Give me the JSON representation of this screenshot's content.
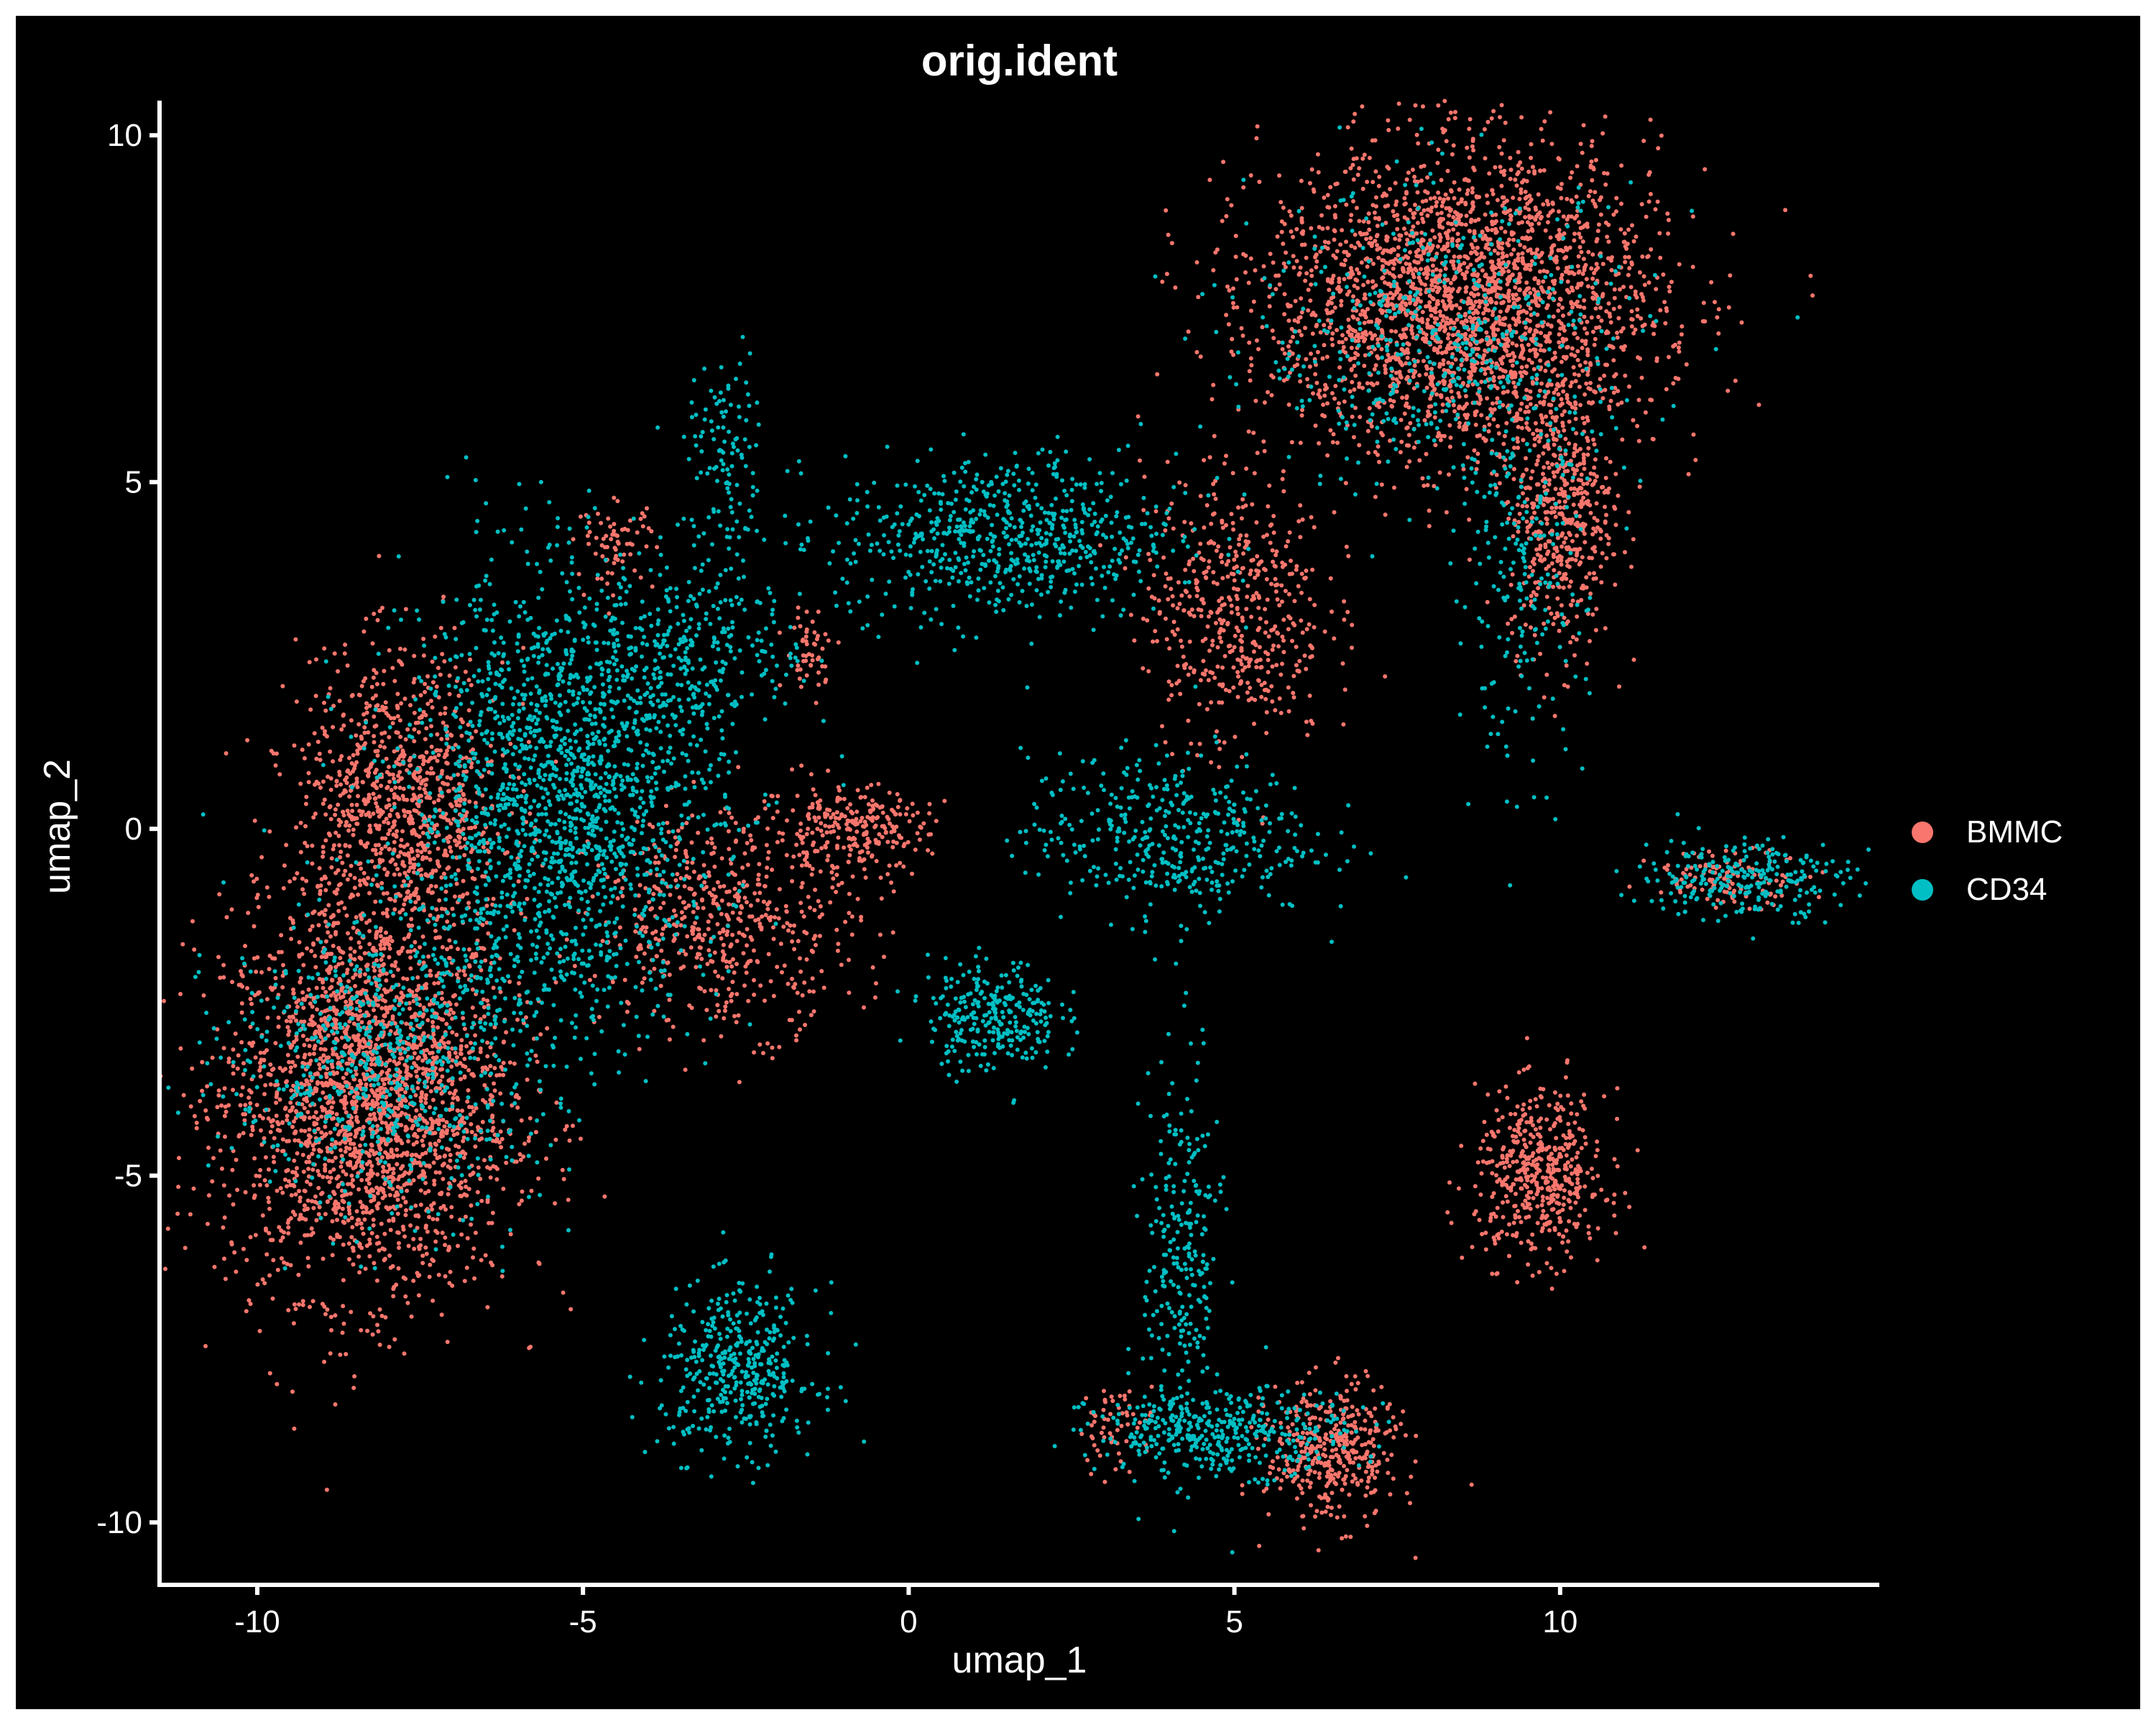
{
  "chart_data": {
    "type": "scatter",
    "title": "orig.ident",
    "xlabel": "umap_1",
    "ylabel": "umap_2",
    "xlim": [
      -11.5,
      14.9
    ],
    "ylim": [
      -10.9,
      10.5
    ],
    "xticks": [
      -10,
      -5,
      0,
      5,
      10
    ],
    "yticks": [
      -10,
      -5,
      0,
      5,
      10
    ],
    "grid": false,
    "legend_position": "right",
    "background": "#000000",
    "series": [
      {
        "name": "BMMC",
        "color": "#F8766D",
        "clusters": [
          {
            "x": -8.3,
            "y": -3.9,
            "sx": 1.1,
            "sy": 1.4,
            "n": 2400
          },
          {
            "x": -7.8,
            "y": 0.3,
            "sx": 0.8,
            "sy": 1.1,
            "n": 1000
          },
          {
            "x": -2.8,
            "y": -1.3,
            "sx": 1.0,
            "sy": 0.8,
            "n": 550
          },
          {
            "x": -0.9,
            "y": 0.0,
            "sx": 0.6,
            "sy": 0.3,
            "n": 250
          },
          {
            "x": -4.5,
            "y": 4.1,
            "sx": 0.3,
            "sy": 0.3,
            "n": 70
          },
          {
            "x": -1.5,
            "y": 2.6,
            "sx": 0.2,
            "sy": 0.3,
            "n": 50
          },
          {
            "x": 8.5,
            "y": 7.6,
            "sx": 1.5,
            "sy": 1.1,
            "n": 2600
          },
          {
            "x": 10.0,
            "y": 4.6,
            "sx": 0.4,
            "sy": 1.0,
            "n": 500
          },
          {
            "x": 5.0,
            "y": 3.2,
            "sx": 0.7,
            "sy": 1.0,
            "n": 500
          },
          {
            "x": 9.7,
            "y": -5.0,
            "sx": 0.5,
            "sy": 0.6,
            "n": 500
          },
          {
            "x": 6.5,
            "y": -9.0,
            "sx": 0.5,
            "sy": 0.5,
            "n": 400
          },
          {
            "x": 12.6,
            "y": -0.7,
            "sx": 0.6,
            "sy": 0.2,
            "n": 120
          },
          {
            "x": 3.2,
            "y": -8.6,
            "sx": 0.3,
            "sy": 0.3,
            "n": 60
          }
        ]
      },
      {
        "name": "CD34",
        "color": "#00BFC4",
        "clusters": [
          {
            "x": -5.3,
            "y": 0.5,
            "sx": 1.2,
            "sy": 1.6,
            "n": 1800
          },
          {
            "x": -8.0,
            "y": -3.3,
            "sx": 1.2,
            "sy": 1.1,
            "n": 700
          },
          {
            "x": -3.2,
            "y": 2.6,
            "sx": 0.8,
            "sy": 0.6,
            "n": 250
          },
          {
            "x": -2.8,
            "y": 5.2,
            "sx": 0.3,
            "sy": 0.8,
            "n": 120
          },
          {
            "x": 1.5,
            "y": 4.2,
            "sx": 1.3,
            "sy": 0.6,
            "n": 650
          },
          {
            "x": 4.0,
            "y": -0.1,
            "sx": 1.1,
            "sy": 0.6,
            "n": 420
          },
          {
            "x": 1.3,
            "y": -2.7,
            "sx": 0.5,
            "sy": 0.4,
            "n": 280
          },
          {
            "x": -2.6,
            "y": -7.8,
            "sx": 0.6,
            "sy": 0.6,
            "n": 420
          },
          {
            "x": 4.2,
            "y": -6.2,
            "sx": 0.3,
            "sy": 1.4,
            "n": 250
          },
          {
            "x": 4.8,
            "y": -8.7,
            "sx": 1.0,
            "sy": 0.3,
            "n": 400
          },
          {
            "x": 12.8,
            "y": -0.7,
            "sx": 0.8,
            "sy": 0.3,
            "n": 250
          },
          {
            "x": 9.4,
            "y": 3.5,
            "sx": 0.5,
            "sy": 1.3,
            "n": 200
          },
          {
            "x": 8.3,
            "y": 7.0,
            "sx": 1.5,
            "sy": 1.1,
            "n": 500
          }
        ]
      }
    ]
  }
}
